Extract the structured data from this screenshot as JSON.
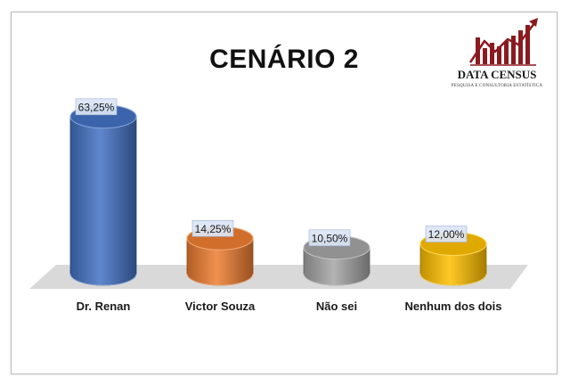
{
  "chart_data": {
    "type": "bar",
    "title": "CENÁRIO 2",
    "categories": [
      "Dr. Renan",
      "Victor Souza",
      "Não sei",
      "Nenhum dos dois"
    ],
    "values": [
      63.25,
      14.25,
      10.5,
      12.0
    ],
    "value_labels": [
      "63,25%",
      "14,25%",
      "10,50%",
      "12,00%"
    ],
    "colors": [
      "#4472c4",
      "#ed7d31",
      "#a5a5a5",
      "#ffc000"
    ],
    "ylim": [
      0,
      70
    ],
    "grid": false,
    "legend": "none",
    "style": "3d-cylinder"
  },
  "logo": {
    "name": "DATA CENSUS",
    "subtitle": "PESQUISA E CONSULTORIA ESTATÍSTICA",
    "icon": "bar-chart-arrow-icon",
    "color": "#8b1a1f"
  }
}
